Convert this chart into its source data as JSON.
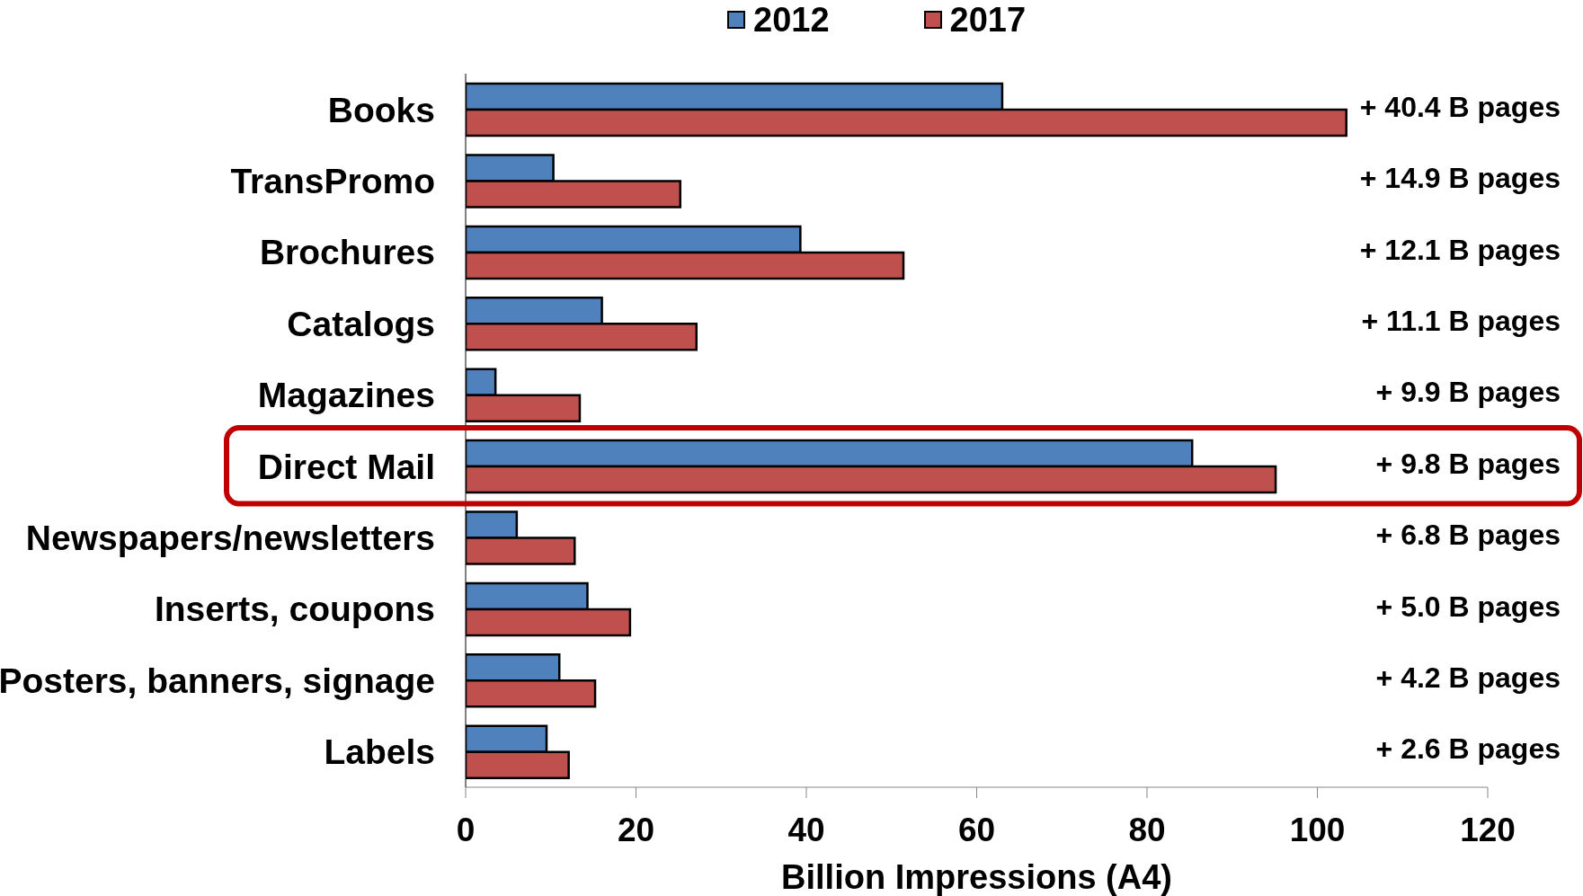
{
  "chart_data": {
    "type": "bar",
    "orientation": "horizontal",
    "categories": [
      "Books",
      "TransPromo",
      "Brochures",
      "Catalogs",
      "Magazines",
      "Direct Mail",
      "Newspapers/newsletters",
      "Inserts, coupons",
      "Posters, banners, signage",
      "Labels"
    ],
    "series": [
      {
        "name": "2012",
        "color": "#4f81bd",
        "values": [
          63.0,
          10.3,
          39.3,
          16.0,
          3.5,
          85.3,
          6.0,
          14.3,
          11.0,
          9.5
        ]
      },
      {
        "name": "2017",
        "color": "#c0504d",
        "values": [
          103.4,
          25.2,
          51.4,
          27.1,
          13.4,
          95.1,
          12.8,
          19.3,
          15.2,
          12.1
        ]
      }
    ],
    "xlabel": "Billion Impressions (A4)",
    "xlim": [
      0,
      120
    ],
    "xticks": [
      0,
      20,
      40,
      60,
      80,
      100,
      120
    ],
    "legend": "top",
    "annotations": [
      "+ 40.4 B pages",
      "+ 14.9 B pages",
      "+ 12.1 B pages",
      "+ 11.1 B pages",
      "+ 9.9 B pages",
      "+ 9.8 B pages",
      "+ 6.8 B pages",
      "+ 5.0 B pages",
      "+ 4.2 B pages",
      "+ 2.6 B pages"
    ]
  }
}
